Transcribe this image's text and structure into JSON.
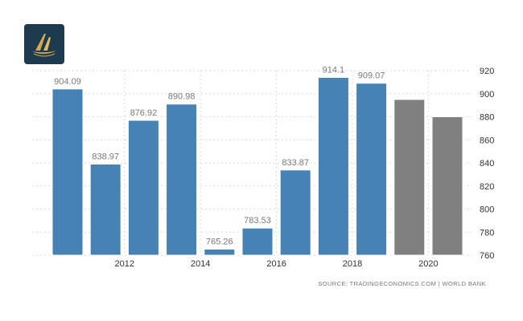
{
  "logo": {
    "icon": "gold-ship-logo-icon"
  },
  "source_text": "SOURCE: TRADINGECONOMICS.COM  |  WORLD BANK",
  "colors": {
    "actual": "#4682b4",
    "forecast": "#808080",
    "grid": "#d9d9d9",
    "bar_border": "#ffffff"
  },
  "chart_data": {
    "type": "bar",
    "x": [
      2011,
      2012,
      2013,
      2014,
      2015,
      2016,
      2017,
      2018,
      2019,
      2020,
      2021
    ],
    "values": [
      904.09,
      838.97,
      876.92,
      890.98,
      765.26,
      783.53,
      833.87,
      914.1,
      909.07,
      895,
      880
    ],
    "labels": [
      "904.09",
      "838.97",
      "876.92",
      "890.98",
      "765.26",
      "783.53",
      "833.87",
      "914.1",
      "909.07",
      "",
      ""
    ],
    "forecast_from_index": 9,
    "x_tick_labels": [
      {
        "index": 1,
        "label": "2012"
      },
      {
        "index": 3,
        "label": "2014"
      },
      {
        "index": 5,
        "label": "2016"
      },
      {
        "index": 7,
        "label": "2018"
      },
      {
        "index": 9,
        "label": "2020"
      }
    ],
    "y_ticks": [
      760,
      780,
      800,
      820,
      840,
      860,
      880,
      900,
      920
    ],
    "ylim": [
      760,
      920
    ],
    "y_axis_side": "right",
    "grid": "dashed-horizontal-and-vertical",
    "title": "",
    "xlabel": "",
    "ylabel": ""
  }
}
